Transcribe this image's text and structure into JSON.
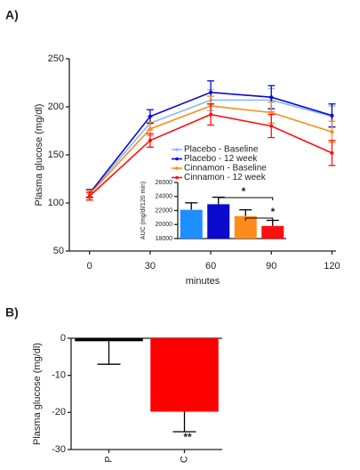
{
  "chart_data": [
    {
      "type": "line",
      "label": "A)",
      "ylabel": "Plasma glucose (mg/dl)",
      "xlabel": "minutes",
      "x": [
        0,
        30,
        60,
        90,
        120
      ],
      "xlim": [
        -10,
        122
      ],
      "xticks": [
        0,
        30,
        60,
        90,
        120
      ],
      "ylim": [
        50,
        250
      ],
      "yticks": [
        50,
        100,
        150,
        200,
        250
      ],
      "series": [
        {
          "name": "Placebo - Baseline",
          "color": "#8ab8ff",
          "values": [
            110,
            183,
            207,
            207,
            190
          ],
          "errors": [
            4,
            7,
            11,
            12,
            11
          ]
        },
        {
          "name": "Placebo - 12 week",
          "color": "#0a0acc",
          "values": [
            110,
            190,
            215,
            210,
            191
          ],
          "errors": [
            4,
            7,
            12,
            12,
            12
          ]
        },
        {
          "name": "Cinnamon - Baseline",
          "color": "#ff8c1a",
          "values": [
            109,
            177,
            201,
            194,
            174
          ],
          "errors": [
            4,
            7,
            10,
            11,
            11
          ]
        },
        {
          "name": "Cinnamon - 12 week",
          "color": "#ff1010",
          "values": [
            107,
            165,
            192,
            180,
            152
          ],
          "errors": [
            4,
            7,
            11,
            12,
            13
          ]
        }
      ]
    },
    {
      "type": "bar",
      "ylabel": "AUC (mg/dl/120 min)",
      "categories": [
        null,
        null,
        null,
        null
      ],
      "values": [
        22100,
        22900,
        21200,
        19800
      ],
      "errors": [
        1000,
        1000,
        900,
        800
      ],
      "colors": [
        "#1e8fff",
        "#0a0acc",
        "#ff8c1a",
        "#ff1010"
      ],
      "ylim": [
        18000,
        26000
      ],
      "yticks": [
        18000,
        20000,
        22000,
        24000,
        26000
      ],
      "annotations": [
        "*",
        "*"
      ]
    },
    {
      "type": "bar",
      "label": "B)",
      "ylabel": "Plasma glucose (mg/dl)",
      "categories": [
        "P",
        "C"
      ],
      "values": [
        -0.8,
        -19.8
      ],
      "errors": [
        6.2,
        5.4
      ],
      "colors": [
        "#000000",
        "#ff0000"
      ],
      "ylim": [
        -30,
        0
      ],
      "yticks": [
        0,
        -10,
        -20,
        -30
      ],
      "annotations": [
        "**"
      ]
    }
  ]
}
